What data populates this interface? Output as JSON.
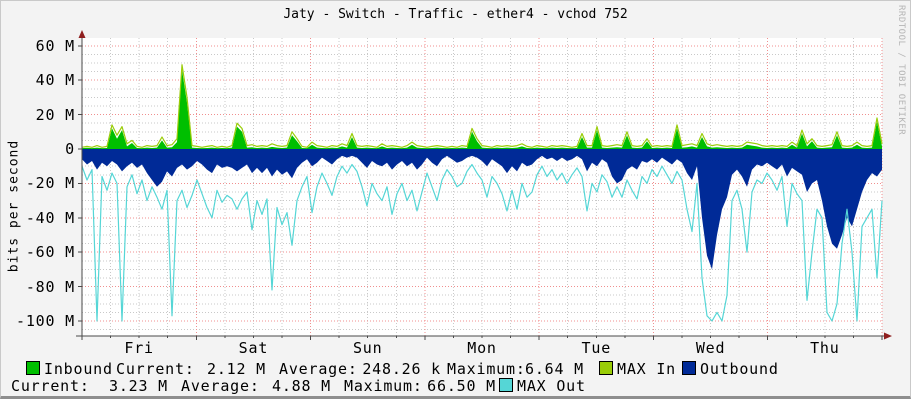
{
  "window": {
    "title": "Jaty - Switch - Traffic - ether4 - vchod 752"
  },
  "watermark": "RRDTOOL / TOBI OETIKER",
  "chart_data": {
    "type": "area",
    "title": "Jaty - Switch - Traffic - ether4 - vchod 752",
    "ylabel": "bits per second",
    "xlabel": "",
    "unit": "millions of bits per second (M)",
    "ylim": [
      -108,
      65
    ],
    "grid": {
      "h_major_step_M": 20,
      "h_minor_step_M": 5,
      "v_major": "1 day (red dotted)",
      "v_minor": "6 hours (gray dotted)",
      "style": "dotted"
    },
    "legend_position": "bottom",
    "y_ticks": [
      {
        "label": "60 M",
        "value": 60
      },
      {
        "label": "40 M",
        "value": 40
      },
      {
        "label": "20 M",
        "value": 20
      },
      {
        "label": "0",
        "value": 0
      },
      {
        "label": "-20 M",
        "value": -20
      },
      {
        "label": "-40 M",
        "value": -40
      },
      {
        "label": "-60 M",
        "value": -60
      },
      {
        "label": "-80 M",
        "value": -80
      },
      {
        "label": "-100 M",
        "value": -100
      }
    ],
    "x_labels": [
      "Fri",
      "Sat",
      "Sun",
      "Mon",
      "Tue",
      "Wed",
      "Thu"
    ],
    "series": [
      {
        "name": "Inbound",
        "type": "area",
        "color": "#00bf00",
        "values": [
          0.5,
          0.7,
          0.5,
          0.8,
          0.5,
          0.6,
          12,
          6,
          11,
          1.5,
          3.5,
          0.6,
          0.5,
          0.8,
          0.6,
          0.8,
          5,
          0.8,
          1,
          4,
          46,
          27,
          0.8,
          0.6,
          0.5,
          0.6,
          0.8,
          0.5,
          0.6,
          0.5,
          0.8,
          13,
          10,
          0.8,
          1,
          0.6,
          0.8,
          0.6,
          1.2,
          0.8,
          0.6,
          0.8,
          8,
          4.5,
          0.6,
          0.5,
          2.5,
          0.8,
          0.6,
          0.5,
          0.8,
          0.6,
          1.5,
          0.8,
          7,
          0.8,
          0.6,
          0.8,
          0.6,
          0.5,
          1.5,
          0.6,
          0.8,
          0.6,
          0.5,
          0.8,
          2.5,
          0.8,
          0.6,
          0.5,
          0.6,
          0.8,
          0.6,
          0.5,
          0.6,
          0.5,
          0.8,
          0.6,
          10,
          4.5,
          0.8,
          0.6,
          0.5,
          0.8,
          0.6,
          0.8,
          0.6,
          0.8,
          1.5,
          0.6,
          0.5,
          0.8,
          0.6,
          0.5,
          0.8,
          0.6,
          0.8,
          0.6,
          0.5,
          0.6,
          7,
          0.8,
          0.8,
          11,
          0.8,
          0.6,
          0.8,
          1,
          0.8,
          8,
          0.8,
          0.6,
          0.8,
          4.5,
          0.6,
          0.8,
          0.6,
          0.8,
          0.6,
          12,
          0.8,
          1,
          1.5,
          0.8,
          7,
          1.5,
          0.8,
          1,
          0.8,
          0.6,
          0.8,
          0.6,
          0.8,
          2.5,
          2,
          1.5,
          0.8,
          0.6,
          0.8,
          0.6,
          0.8,
          0.6,
          2.5,
          0.8,
          9,
          1.5,
          4.5,
          0.8,
          0.6,
          0.8,
          1,
          8,
          0.8,
          0.6,
          0.8,
          2.5,
          0.8,
          0.6,
          0.8,
          16,
          1.5
        ]
      },
      {
        "name": "MAX In",
        "type": "line",
        "color": "#9acd08",
        "values": [
          1,
          1.5,
          1,
          2,
          1,
          1.5,
          14,
          8,
          13,
          3,
          5,
          1.5,
          1,
          2,
          1.5,
          2,
          7,
          2,
          2.5,
          6,
          49,
          30,
          2,
          1.5,
          1,
          1.5,
          2,
          1,
          1.5,
          1,
          2,
          15,
          12,
          2,
          2.5,
          1.5,
          2,
          1.5,
          3,
          2,
          1.5,
          2,
          10,
          6,
          1.5,
          1,
          4,
          2,
          1.5,
          1,
          2,
          1.5,
          3,
          2,
          9,
          2,
          1.5,
          2,
          1.5,
          1,
          3,
          1.5,
          2,
          1.5,
          1,
          2,
          4,
          2,
          1.5,
          1,
          1.5,
          2,
          1.5,
          1,
          1.5,
          1,
          2,
          1.5,
          12,
          6,
          2,
          1.5,
          1,
          2,
          1.5,
          2,
          1.5,
          2,
          3,
          1.5,
          1,
          2,
          1.5,
          1,
          2,
          1.5,
          2,
          1.5,
          1,
          1.5,
          9,
          2,
          2,
          13,
          2,
          1.5,
          2,
          2.5,
          2,
          10,
          2,
          1.5,
          2,
          6,
          1.5,
          2,
          1.5,
          2,
          1.5,
          14,
          2,
          2.5,
          3,
          2,
          9,
          3,
          2,
          2.5,
          2,
          1.5,
          2,
          1.5,
          2,
          4,
          3.5,
          3,
          2,
          1.5,
          2,
          1.5,
          2,
          1.5,
          4,
          2,
          11,
          3,
          6,
          2,
          1.5,
          2,
          2.5,
          10,
          2,
          1.5,
          2,
          4,
          2,
          1.5,
          2,
          18,
          3
        ]
      },
      {
        "name": "Outbound",
        "type": "area",
        "color": "#002a97",
        "values": [
          -6,
          -9,
          -7,
          -12,
          -8,
          -10,
          -7,
          -9,
          -13,
          -10,
          -8,
          -11,
          -9,
          -14,
          -18,
          -22,
          -19,
          -13,
          -16,
          -11,
          -9,
          -12,
          -10,
          -7,
          -9,
          -12,
          -14,
          -9,
          -11,
          -10,
          -11,
          -13,
          -11,
          -9,
          -14,
          -11,
          -14,
          -11,
          -16,
          -12,
          -15,
          -13,
          -17,
          -11,
          -8,
          -6,
          -10,
          -8,
          -5,
          -7,
          -9,
          -6,
          -4,
          -5,
          -4,
          -5,
          -8,
          -11,
          -7,
          -9,
          -10,
          -8,
          -12,
          -9,
          -7,
          -10,
          -8,
          -12,
          -9,
          -5,
          -8,
          -10,
          -6,
          -4,
          -6,
          -8,
          -7,
          -5,
          -4,
          -5,
          -7,
          -10,
          -6,
          -8,
          -10,
          -14,
          -10,
          -13,
          -8,
          -10,
          -9,
          -6,
          -4,
          -6,
          -5,
          -7,
          -5,
          -7,
          -6,
          -4,
          -6,
          -13,
          -8,
          -10,
          -6,
          -8,
          -16,
          -20,
          -18,
          -12,
          -10,
          -12,
          -7,
          -8,
          -6,
          -8,
          -5,
          -7,
          -9,
          -6,
          -8,
          -14,
          -18,
          -10,
          -40,
          -62,
          -70,
          -50,
          -35,
          -28,
          -15,
          -12,
          -16,
          -22,
          -12,
          -9,
          -10,
          -8,
          -10,
          -12,
          -9,
          -16,
          -11,
          -13,
          -15,
          -25,
          -20,
          -18,
          -30,
          -45,
          -55,
          -58,
          -50,
          -40,
          -45,
          -35,
          -25,
          -18,
          -14,
          -16,
          -12
        ]
      },
      {
        "name": "MAX Out",
        "type": "line",
        "color": "#55d6d6",
        "values": [
          -10,
          -18,
          -12,
          -100,
          -16,
          -24,
          -14,
          -20,
          -100,
          -22,
          -15,
          -26,
          -18,
          -30,
          -22,
          -28,
          -35,
          -24,
          -97,
          -30,
          -24,
          -34,
          -27,
          -18,
          -26,
          -34,
          -40,
          -24,
          -31,
          -27,
          -29,
          -35,
          -29,
          -25,
          -47,
          -30,
          -38,
          -29,
          -82,
          -34,
          -44,
          -37,
          -56,
          -30,
          -22,
          -16,
          -37,
          -22,
          -14,
          -20,
          -27,
          -16,
          -10,
          -14,
          -9,
          -13,
          -22,
          -33,
          -20,
          -26,
          -30,
          -22,
          -38,
          -26,
          -20,
          -30,
          -24,
          -36,
          -25,
          -14,
          -22,
          -30,
          -18,
          -12,
          -16,
          -22,
          -20,
          -13,
          -9,
          -14,
          -18,
          -28,
          -16,
          -20,
          -26,
          -36,
          -24,
          -35,
          -20,
          -28,
          -25,
          -15,
          -10,
          -16,
          -12,
          -18,
          -14,
          -20,
          -15,
          -11,
          -16,
          -36,
          -20,
          -25,
          -15,
          -19,
          -28,
          -22,
          -28,
          -18,
          -24,
          -29,
          -16,
          -20,
          -12,
          -16,
          -10,
          -15,
          -20,
          -13,
          -18,
          -35,
          -48,
          -20,
          -75,
          -97,
          -100,
          -95,
          -100,
          -85,
          -30,
          -24,
          -35,
          -60,
          -25,
          -18,
          -20,
          -14,
          -18,
          -24,
          -16,
          -45,
          -20,
          -26,
          -30,
          -88,
          -60,
          -35,
          -40,
          -95,
          -100,
          -90,
          -55,
          -35,
          -60,
          -100,
          -45,
          -40,
          -35,
          -75,
          -30
        ]
      }
    ]
  },
  "legend": {
    "inbound": {
      "label": "Inbound",
      "swatch": "#00bf00",
      "current_label": "Current:",
      "current": "2.12 M",
      "average_label": "Average:",
      "average": "248.26 k",
      "maximum_label": "Maximum:",
      "maximum": "6.64 M"
    },
    "max_in": {
      "label": "MAX In",
      "swatch": "#9acd08"
    },
    "outbound_swatch_label": {
      "label": "Outbound",
      "swatch": "#002a97"
    },
    "outbound": {
      "current_label": "Current:",
      "current": "3.23 M",
      "average_label": "Average:",
      "average": "4.88 M",
      "maximum_label": "Maximum:",
      "maximum": "66.50 M"
    },
    "max_out": {
      "label": "MAX Out",
      "swatch": "#55d6d6"
    }
  }
}
